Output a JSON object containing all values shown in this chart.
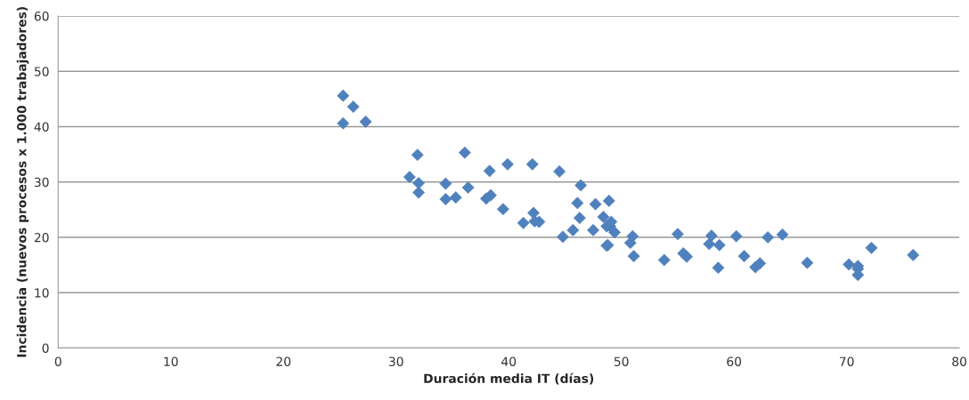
{
  "chart_data": {
    "type": "scatter",
    "xlabel": "Duración media IT (días)",
    "ylabel": "Incidencia (nuevos procesos x 1.000 trabajadores)",
    "x": [
      25.3,
      26.2,
      25.3,
      27.3,
      31.2,
      31.9,
      32.0,
      32.0,
      34.4,
      34.4,
      35.3,
      36.1,
      36.4,
      38.0,
      38.3,
      38.4,
      39.5,
      39.9,
      41.3,
      42.1,
      42.2,
      42.3,
      42.7,
      44.5,
      44.8,
      45.7,
      46.1,
      46.3,
      46.4,
      47.5,
      47.7,
      48.4,
      48.7,
      48.7,
      48.8,
      48.9,
      49.0,
      49.1,
      49.4,
      50.8,
      51.0,
      51.1,
      53.8,
      55.0,
      55.5,
      55.8,
      57.8,
      58.0,
      58.6,
      58.7,
      60.2,
      60.9,
      61.9,
      62.3,
      63.0,
      64.3,
      66.5,
      70.2,
      71.0,
      71.0,
      71.0,
      72.2,
      75.9
    ],
    "values": [
      45.6,
      43.6,
      40.6,
      40.9,
      30.9,
      34.9,
      29.8,
      28.1,
      29.7,
      26.9,
      27.2,
      35.3,
      29.0,
      27.0,
      32.0,
      27.6,
      25.1,
      33.2,
      22.6,
      33.2,
      24.4,
      22.9,
      22.8,
      31.9,
      20.1,
      21.3,
      26.2,
      23.5,
      29.4,
      21.3,
      26.0,
      23.7,
      22.0,
      18.5,
      18.6,
      26.6,
      22.0,
      22.8,
      20.9,
      19.0,
      20.2,
      16.6,
      15.9,
      20.6,
      17.1,
      16.5,
      18.8,
      20.3,
      14.5,
      18.6,
      20.2,
      16.6,
      14.6,
      15.3,
      20.0,
      20.5,
      15.4,
      15.1,
      14.8,
      13.2,
      14.3,
      18.1,
      16.8
    ],
    "color": "#4f81bd",
    "marker": "diamond",
    "xlim": [
      0,
      80
    ],
    "xticks": [
      0,
      10,
      20,
      30,
      40,
      50,
      60,
      70,
      80
    ],
    "ylim": [
      0,
      60
    ],
    "yticks": [
      0,
      10,
      20,
      30,
      40,
      50,
      60
    ],
    "grid": "y"
  }
}
